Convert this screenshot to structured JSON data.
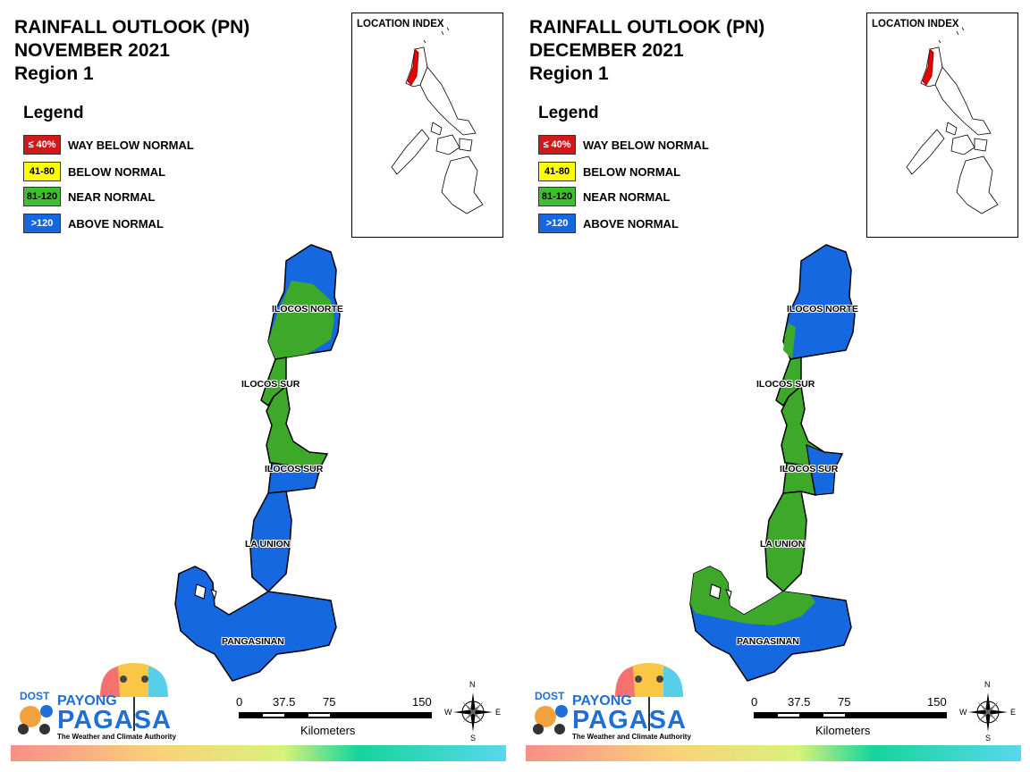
{
  "panels": [
    {
      "title_line1": "RAINFALL OUTLOOK (PN)",
      "title_line2": "NOVEMBER 2021",
      "title_line3": "Region 1",
      "fills": {
        "north": "#6fae2c",
        "ilocos_sur_top": "#3ea82b",
        "ilocos_sur_bottom": "#3ea82b",
        "la_union": "#1668e0",
        "pangasinan": "#1668e0",
        "east_strip": "#1668e0"
      }
    },
    {
      "title_line1": "RAINFALL OUTLOOK (PN)",
      "title_line2": "DECEMBER 2021",
      "title_line3": "Region 1",
      "fills": {
        "north": "#1668e0",
        "ilocos_sur_top": "#3ea82b",
        "ilocos_sur_bottom": "#3ea82b",
        "la_union": "#3ea82b",
        "pangasinan": "#1668e0",
        "east_strip": "#1668e0"
      }
    }
  ],
  "legend": {
    "title": "Legend",
    "items": [
      {
        "range": "≤ 40%",
        "label": "WAY BELOW NORMAL",
        "color": "#d11919",
        "text_color": "#ffffff"
      },
      {
        "range": "41-80",
        "label": "BELOW NORMAL",
        "color": "#ffff00",
        "text_color": "#000000"
      },
      {
        "range": "81-120",
        "label": "NEAR NORMAL",
        "color": "#3ec02e",
        "text_color": "#000000"
      },
      {
        "range": ">120",
        "label": "ABOVE NORMAL",
        "color": "#1668e0",
        "text_color": "#ffffff"
      }
    ]
  },
  "location_index": {
    "label": "LOCATION INDEX"
  },
  "provinces": {
    "ilocos_norte": "ILOCOS NORTE",
    "ilocos_sur_1": "ILOCOS SUR",
    "ilocos_sur_2": "ILOCOS SUR",
    "la_union": "LA UNION",
    "pangasinan": "PANGASINAN"
  },
  "scale": {
    "ticks": [
      "0",
      "37.5",
      "75",
      "150"
    ],
    "unit": "Kilometers"
  },
  "compass": {
    "n": "N",
    "s": "S",
    "e": "E",
    "w": "W"
  },
  "logo": {
    "dost": "DOST",
    "payong": "PAYONG",
    "pagasa": "PAGASA",
    "tagline": "The Weather and Climate Authority"
  }
}
